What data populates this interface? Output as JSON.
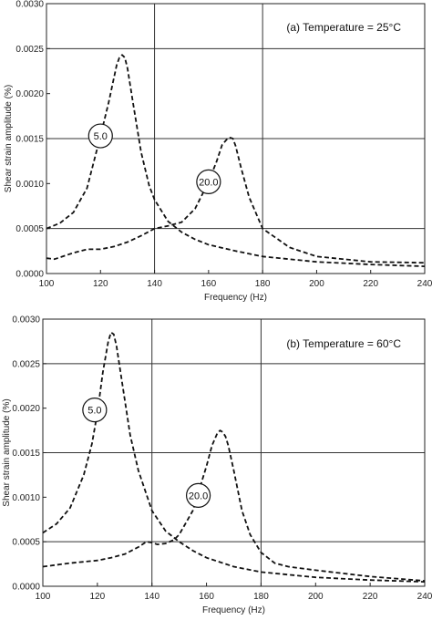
{
  "chart_data": [
    {
      "type": "line",
      "title": "(a) Temperature = 25°C",
      "xlabel": "Frequency (Hz)",
      "ylabel": "Shear strain amplitude (%)",
      "xlim": [
        100,
        240
      ],
      "ylim": [
        0,
        0.003
      ],
      "xticks": [
        "100",
        "120",
        "140",
        "160",
        "180",
        "200",
        "220",
        "240"
      ],
      "yticks": [
        "0.0000",
        "0.0005",
        "0.0010",
        "0.0015",
        "0.0020",
        "0.0025",
        "0.0030"
      ],
      "grid": "vertical and horizontal lines at every other tick",
      "series": [
        {
          "name": "5.0",
          "x": [
            100,
            105,
            110,
            115,
            118,
            120,
            123,
            125,
            126,
            127,
            128,
            129,
            130,
            132,
            135,
            138,
            140,
            145,
            150,
            155,
            160,
            170,
            180,
            200,
            220,
            240
          ],
          "y": [
            0.0005,
            0.00056,
            0.00068,
            0.00095,
            0.0013,
            0.00153,
            0.0019,
            0.00218,
            0.00232,
            0.0024,
            0.00243,
            0.0024,
            0.00228,
            0.0019,
            0.00135,
            0.00098,
            0.00082,
            0.00058,
            0.00046,
            0.00038,
            0.00032,
            0.00025,
            0.00019,
            0.00013,
            0.0001,
            8e-05
          ],
          "style": "dashed",
          "color": "#111111"
        },
        {
          "name": "20.0",
          "x": [
            100,
            103,
            110,
            115,
            120,
            125,
            130,
            135,
            140,
            145,
            150,
            155,
            160,
            163,
            165,
            167,
            168,
            169,
            170,
            172,
            175,
            180,
            190,
            200,
            220,
            240
          ],
          "y": [
            0.00017,
            0.00016,
            0.00023,
            0.00027,
            0.00027,
            0.0003,
            0.00035,
            0.00042,
            0.0005,
            0.00053,
            0.00057,
            0.00072,
            0.00102,
            0.00125,
            0.00143,
            0.0015,
            0.00151,
            0.0015,
            0.00142,
            0.00118,
            0.00085,
            0.0005,
            0.00029,
            0.00019,
            0.00013,
            0.00012
          ],
          "style": "dashed",
          "color": "#111111"
        }
      ],
      "labels": [
        {
          "text": "5.0",
          "x": 120,
          "y": 0.00153
        },
        {
          "text": "20.0",
          "x": 160,
          "y": 0.00102
        }
      ]
    },
    {
      "type": "line",
      "title": "(b) Temperature = 60°C",
      "xlabel": "Frequency (Hz)",
      "ylabel": "Shear strain amplitude (%)",
      "xlim": [
        100,
        240
      ],
      "ylim": [
        0,
        0.003
      ],
      "xticks": [
        "100",
        "120",
        "140",
        "160",
        "180",
        "200",
        "220",
        "240"
      ],
      "yticks": [
        "0.0000",
        "0.0005",
        "0.0010",
        "0.0015",
        "0.0020",
        "0.0025",
        "0.0030"
      ],
      "grid": "vertical and horizontal lines at every other tick",
      "series": [
        {
          "name": "5.0",
          "x": [
            100,
            105,
            110,
            115,
            118,
            120,
            122,
            124,
            125,
            126,
            127,
            128,
            130,
            132,
            135,
            140,
            145,
            150,
            155,
            160,
            170,
            180,
            200,
            220,
            240
          ],
          "y": [
            0.0006,
            0.0007,
            0.00088,
            0.00125,
            0.0016,
            0.00195,
            0.0024,
            0.00275,
            0.00285,
            0.00283,
            0.0027,
            0.0025,
            0.0021,
            0.0017,
            0.0013,
            0.00085,
            0.00062,
            0.0005,
            0.0004,
            0.00032,
            0.00022,
            0.00016,
            0.0001,
            7e-05,
            5e-05
          ],
          "style": "dashed",
          "color": "#111111"
        },
        {
          "name": "20.0",
          "x": [
            100,
            110,
            120,
            125,
            130,
            135,
            138,
            140,
            142,
            145,
            148,
            150,
            155,
            158,
            160,
            162,
            164,
            165,
            166,
            167,
            168,
            170,
            173,
            176,
            180,
            185,
            190,
            200,
            220,
            240
          ],
          "y": [
            0.00022,
            0.00026,
            0.00029,
            0.00032,
            0.00036,
            0.00044,
            0.0005,
            0.00049,
            0.00047,
            0.00048,
            0.00052,
            0.00058,
            0.00085,
            0.00115,
            0.00135,
            0.00158,
            0.00172,
            0.00175,
            0.00173,
            0.00168,
            0.00158,
            0.0013,
            0.00085,
            0.00058,
            0.00038,
            0.00026,
            0.00022,
            0.00018,
            0.00011,
            6e-05
          ],
          "style": "dashed",
          "color": "#111111"
        }
      ],
      "labels": [
        {
          "text": "5.0",
          "x": 119,
          "y": 0.00198
        },
        {
          "text": "20.0",
          "x": 157,
          "y": 0.00102
        }
      ]
    }
  ]
}
